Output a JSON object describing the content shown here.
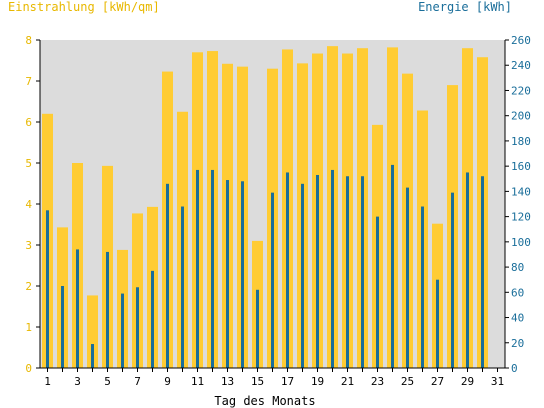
{
  "chart_data": {
    "type": "bar",
    "title_left": "Einstrahlung [kWh/qm]",
    "title_right": "Energie [kWh]",
    "xlabel": "Tag des Monats",
    "categories": [
      1,
      2,
      3,
      4,
      5,
      6,
      7,
      8,
      9,
      10,
      11,
      12,
      13,
      14,
      15,
      16,
      17,
      18,
      19,
      20,
      21,
      22,
      23,
      24,
      25,
      26,
      27,
      28,
      29,
      30,
      31
    ],
    "x_tick_labels": [
      "1",
      "3",
      "5",
      "7",
      "9",
      "11",
      "13",
      "15",
      "17",
      "19",
      "21",
      "23",
      "25",
      "27",
      "29",
      "31"
    ],
    "ylim": [
      0,
      8
    ],
    "y2lim": [
      0,
      260
    ],
    "y_ticks": [
      0,
      1,
      2,
      3,
      4,
      5,
      6,
      7,
      8
    ],
    "y2_ticks": [
      0,
      20,
      40,
      60,
      80,
      100,
      120,
      140,
      160,
      180,
      200,
      220,
      240,
      260
    ],
    "grid": false,
    "series": [
      {
        "axis": "left",
        "color": "#ffcc33",
        "values": [
          6.2,
          3.43,
          5.0,
          1.77,
          4.93,
          2.88,
          3.77,
          3.93,
          7.23,
          6.25,
          7.7,
          7.73,
          7.42,
          7.35,
          3.1,
          7.3,
          7.77,
          7.43,
          7.67,
          7.85,
          7.67,
          7.8,
          5.93,
          7.82,
          7.18,
          6.28,
          3.52,
          6.9,
          7.8,
          7.58,
          0
        ]
      },
      {
        "axis": "right",
        "color": "#1a6e9a",
        "values": [
          125,
          65,
          94,
          19,
          92,
          59,
          64,
          77,
          146,
          128,
          157,
          157,
          149,
          148,
          62,
          139,
          155,
          146,
          153,
          157,
          152,
          152,
          120,
          161,
          143,
          128,
          70,
          139,
          155,
          152,
          0
        ]
      }
    ]
  }
}
